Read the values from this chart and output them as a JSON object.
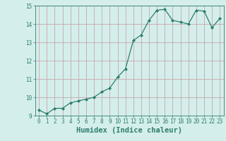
{
  "x": [
    0,
    1,
    2,
    3,
    4,
    5,
    6,
    7,
    8,
    9,
    10,
    11,
    12,
    13,
    14,
    15,
    16,
    17,
    18,
    19,
    20,
    21,
    22,
    23
  ],
  "y": [
    9.3,
    9.1,
    9.4,
    9.4,
    9.7,
    9.8,
    9.9,
    10.0,
    10.3,
    10.5,
    11.1,
    11.55,
    13.1,
    13.4,
    14.2,
    14.75,
    14.8,
    14.2,
    14.1,
    14.0,
    14.75,
    14.7,
    13.8,
    14.3
  ],
  "xlabel": "Humidex (Indice chaleur)",
  "ylim": [
    9,
    15
  ],
  "xlim": [
    -0.5,
    23.5
  ],
  "yticks": [
    9,
    10,
    11,
    12,
    13,
    14,
    15
  ],
  "xticks": [
    0,
    1,
    2,
    3,
    4,
    5,
    6,
    7,
    8,
    9,
    10,
    11,
    12,
    13,
    14,
    15,
    16,
    17,
    18,
    19,
    20,
    21,
    22,
    23
  ],
  "line_color": "#2e7d6e",
  "marker_color": "#2e7d6e",
  "bg_color": "#d4eeec",
  "grid_color": "#c8a8a8",
  "axis_color": "#2e7d6e",
  "tick_fontsize": 5.5,
  "xlabel_fontsize": 7.5
}
